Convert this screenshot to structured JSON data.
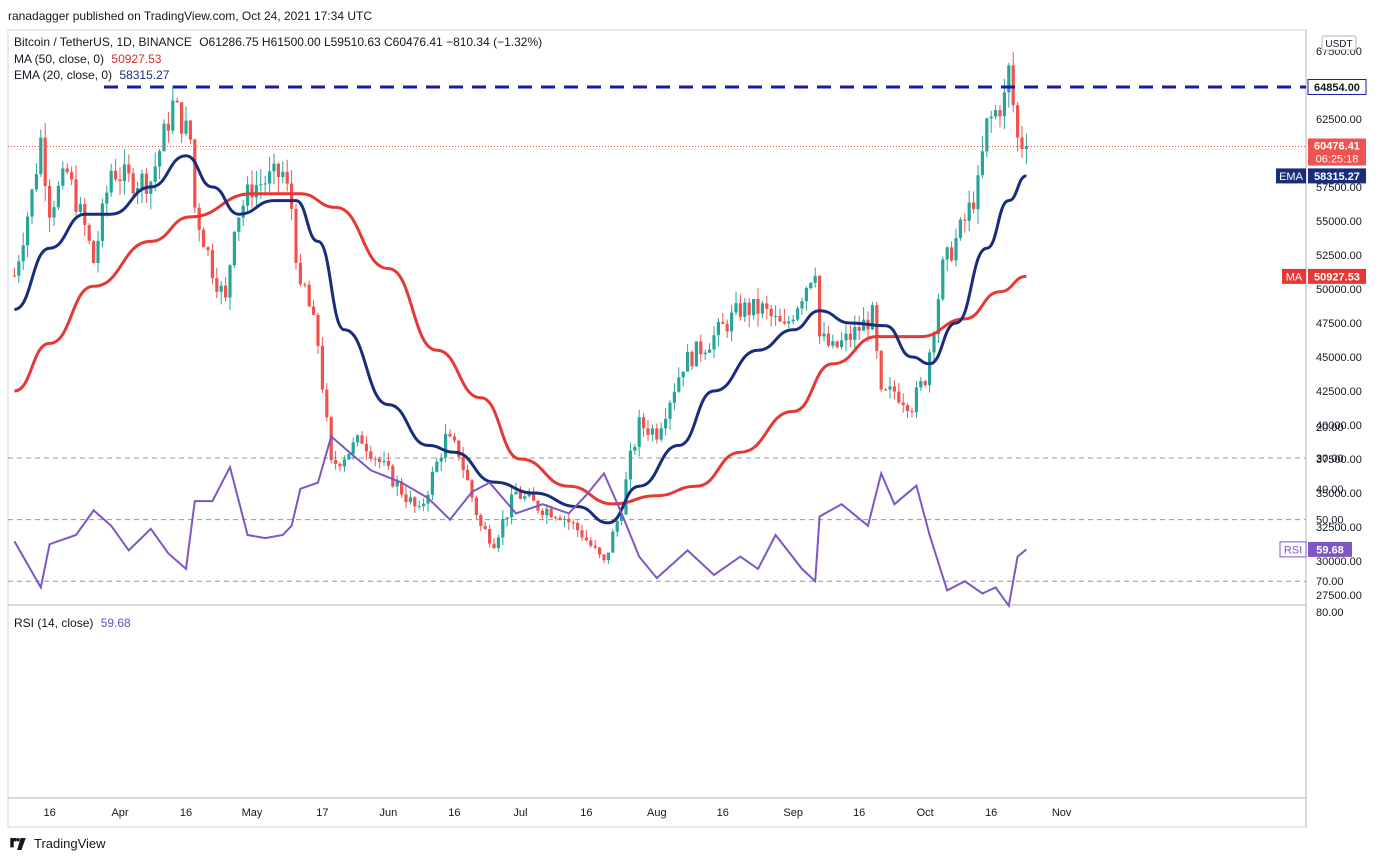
{
  "header": {
    "publisher": "ranadagger published on TradingView.com, Oct 24, 2021 17:34 UTC"
  },
  "legend": {
    "symbol": "Bitcoin / TetherUS, 1D, BINANCE",
    "ohlc": "O61286.75  H61500.00  L59510.63  C60476.41  −810.34 (−1.32%)",
    "ma_label": "MA (50, close, 0)",
    "ma_value": "50927.53",
    "ema_label": "EMA (20, close, 0)",
    "ema_value": "58315.27",
    "rsi_label": "RSI (14, close)",
    "rsi_value": "59.68"
  },
  "price_axis": {
    "currency": "USDT",
    "ticks": [
      "67500.00",
      "62500.00",
      "60000.00",
      "57500.00",
      "55000.00",
      "52500.00",
      "50000.00",
      "47500.00",
      "45000.00",
      "42500.00",
      "40000.00",
      "37500.00",
      "35000.00",
      "32500.00",
      "30000.00",
      "27500.00"
    ],
    "resistance_label": "64854.00",
    "last_price_label": "60476.41",
    "countdown_label": "06:25:18",
    "ema_tag": "EMA",
    "ema_tag_value": "58315.27",
    "ma_tag": "MA",
    "ma_tag_value": "50927.53"
  },
  "rsi_axis": {
    "ticks": [
      "80.00",
      "70.00",
      "50.00",
      "40.00",
      "30.00",
      "20.00"
    ],
    "rsi_tag": "RSI",
    "rsi_tag_value": "59.68"
  },
  "time_axis": {
    "labels": [
      "16",
      "Apr",
      "16",
      "May",
      "17",
      "Jun",
      "16",
      "Jul",
      "16",
      "Aug",
      "16",
      "Sep",
      "16",
      "Oct",
      "16",
      "Nov"
    ]
  },
  "footer": {
    "brand": "TradingView"
  },
  "colors": {
    "up": "#26a69a",
    "down": "#ef5350",
    "ema": "#1a2d7a",
    "ma": "#e53935",
    "rsi": "#7e57c2",
    "resistance": "#1a1aa8",
    "rsi_band": "#ede7f6"
  },
  "chart_data": {
    "type": "candlestick",
    "symbol": "Bitcoin / TetherUS",
    "interval": "1D",
    "ylim": [
      27000,
      68500
    ],
    "resistance": 64854.0,
    "last_close": 60476.41,
    "close_path": [
      [
        "2021-03-08",
        51000
      ],
      [
        "2021-03-12",
        57000
      ],
      [
        "2021-03-14",
        61000
      ],
      [
        "2021-03-16",
        56000
      ],
      [
        "2021-03-20",
        58500
      ],
      [
        "2021-03-24",
        54500
      ],
      [
        "2021-03-26",
        52000
      ],
      [
        "2021-03-30",
        58800
      ],
      [
        "2021-04-03",
        58000
      ],
      [
        "2021-04-08",
        58000
      ],
      [
        "2021-04-13",
        63500
      ],
      [
        "2021-04-14",
        63000
      ],
      [
        "2021-04-17",
        61000
      ],
      [
        "2021-04-18",
        56000
      ],
      [
        "2021-04-22",
        51500
      ],
      [
        "2021-04-25",
        49000
      ],
      [
        "2021-04-27",
        55000
      ],
      [
        "2021-05-01",
        57500
      ],
      [
        "2021-05-08",
        58500
      ],
      [
        "2021-05-10",
        56000
      ],
      [
        "2021-05-12",
        49500
      ],
      [
        "2021-05-13",
        50000
      ],
      [
        "2021-05-16",
        46000
      ],
      [
        "2021-05-19",
        37000
      ],
      [
        "2021-05-21",
        37500
      ],
      [
        "2021-05-26",
        39000
      ],
      [
        "2021-06-02",
        36000
      ],
      [
        "2021-06-08",
        33500
      ],
      [
        "2021-06-14",
        39000
      ],
      [
        "2021-06-17",
        38000
      ],
      [
        "2021-06-22",
        32500
      ],
      [
        "2021-06-25",
        31500
      ],
      [
        "2021-06-30",
        35000
      ],
      [
        "2021-07-05",
        34000
      ],
      [
        "2021-07-10",
        33500
      ],
      [
        "2021-07-15",
        32000
      ],
      [
        "2021-07-20",
        29800
      ],
      [
        "2021-07-24",
        34000
      ],
      [
        "2021-07-26",
        37500
      ],
      [
        "2021-07-28",
        40000
      ],
      [
        "2021-08-01",
        39500
      ],
      [
        "2021-08-07",
        44500
      ],
      [
        "2021-08-14",
        46500
      ],
      [
        "2021-08-20",
        48500
      ],
      [
        "2021-08-25",
        48500
      ],
      [
        "2021-08-30",
        47000
      ],
      [
        "2021-09-06",
        51700
      ],
      [
        "2021-09-07",
        46500
      ],
      [
        "2021-09-10",
        45500
      ],
      [
        "2021-09-14",
        46500
      ],
      [
        "2021-09-19",
        48000
      ],
      [
        "2021-09-21",
        42000
      ],
      [
        "2021-09-24",
        42500
      ],
      [
        "2021-09-28",
        41500
      ],
      [
        "2021-10-01",
        43500
      ],
      [
        "2021-10-05",
        51500
      ],
      [
        "2021-10-10",
        55000
      ],
      [
        "2021-10-13",
        57500
      ],
      [
        "2021-10-15",
        62000
      ],
      [
        "2021-10-19",
        64000
      ],
      [
        "2021-10-20",
        66000
      ],
      [
        "2021-10-22",
        61000
      ],
      [
        "2021-10-24",
        60476.41
      ]
    ],
    "ema20_path": [
      [
        "2021-03-08",
        48500
      ],
      [
        "2021-03-16",
        53000
      ],
      [
        "2021-03-24",
        55500
      ],
      [
        "2021-03-30",
        55500
      ],
      [
        "2021-04-08",
        57500
      ],
      [
        "2021-04-16",
        59800
      ],
      [
        "2021-04-22",
        57500
      ],
      [
        "2021-04-28",
        55500
      ],
      [
        "2021-05-06",
        56500
      ],
      [
        "2021-05-11",
        56500
      ],
      [
        "2021-05-16",
        53500
      ],
      [
        "2021-05-22",
        47000
      ],
      [
        "2021-06-01",
        41500
      ],
      [
        "2021-06-10",
        38500
      ],
      [
        "2021-06-16",
        38000
      ],
      [
        "2021-06-25",
        35800
      ],
      [
        "2021-07-04",
        35000
      ],
      [
        "2021-07-14",
        34000
      ],
      [
        "2021-07-21",
        32800
      ],
      [
        "2021-07-28",
        35500
      ],
      [
        "2021-08-06",
        38500
      ],
      [
        "2021-08-14",
        42500
      ],
      [
        "2021-08-24",
        45500
      ],
      [
        "2021-09-01",
        47000
      ],
      [
        "2021-09-07",
        48400
      ],
      [
        "2021-09-14",
        47500
      ],
      [
        "2021-09-22",
        47300
      ],
      [
        "2021-09-28",
        45000
      ],
      [
        "2021-10-02",
        44500
      ],
      [
        "2021-10-08",
        47500
      ],
      [
        "2021-10-15",
        53000
      ],
      [
        "2021-10-20",
        56500
      ],
      [
        "2021-10-24",
        58315.27
      ]
    ],
    "ma50_path": [
      [
        "2021-03-08",
        42500
      ],
      [
        "2021-03-16",
        46000
      ],
      [
        "2021-03-26",
        50200
      ],
      [
        "2021-04-08",
        53500
      ],
      [
        "2021-04-17",
        55300
      ],
      [
        "2021-05-01",
        57000
      ],
      [
        "2021-05-12",
        57000
      ],
      [
        "2021-05-20",
        56000
      ],
      [
        "2021-06-01",
        51500
      ],
      [
        "2021-06-12",
        45500
      ],
      [
        "2021-06-22",
        42000
      ],
      [
        "2021-07-01",
        37500
      ],
      [
        "2021-07-12",
        35500
      ],
      [
        "2021-07-22",
        34200
      ],
      [
        "2021-08-01",
        34800
      ],
      [
        "2021-08-10",
        35500
      ],
      [
        "2021-08-20",
        38000
      ],
      [
        "2021-09-01",
        41000
      ],
      [
        "2021-09-10",
        44500
      ],
      [
        "2021-09-20",
        46500
      ],
      [
        "2021-09-30",
        46500
      ],
      [
        "2021-10-10",
        47800
      ],
      [
        "2021-10-18",
        49800
      ],
      [
        "2021-10-24",
        50927.53
      ]
    ],
    "rsi": {
      "levels": [
        70,
        50,
        30
      ],
      "ylim": [
        20,
        80
      ],
      "path": [
        [
          "2021-03-08",
          57
        ],
        [
          "2021-03-14",
          72
        ],
        [
          "2021-03-16",
          58
        ],
        [
          "2021-03-22",
          55
        ],
        [
          "2021-03-26",
          47
        ],
        [
          "2021-03-30",
          52
        ],
        [
          "2021-04-03",
          60
        ],
        [
          "2021-04-08",
          53
        ],
        [
          "2021-04-12",
          61
        ],
        [
          "2021-04-16",
          66
        ],
        [
          "2021-04-18",
          44
        ],
        [
          "2021-04-22",
          44
        ],
        [
          "2021-04-26",
          33
        ],
        [
          "2021-04-30",
          55
        ],
        [
          "2021-05-04",
          56
        ],
        [
          "2021-05-08",
          55
        ],
        [
          "2021-05-10",
          52
        ],
        [
          "2021-05-12",
          40
        ],
        [
          "2021-05-16",
          38
        ],
        [
          "2021-05-19",
          23
        ],
        [
          "2021-05-23",
          28
        ],
        [
          "2021-05-28",
          34
        ],
        [
          "2021-06-04",
          38
        ],
        [
          "2021-06-10",
          43
        ],
        [
          "2021-06-15",
          50
        ],
        [
          "2021-06-20",
          41
        ],
        [
          "2021-06-24",
          38
        ],
        [
          "2021-06-30",
          48
        ],
        [
          "2021-07-06",
          45
        ],
        [
          "2021-07-12",
          48
        ],
        [
          "2021-07-16",
          42
        ],
        [
          "2021-07-20",
          35
        ],
        [
          "2021-07-24",
          48
        ],
        [
          "2021-07-28",
          62
        ],
        [
          "2021-08-01",
          69
        ],
        [
          "2021-08-08",
          60
        ],
        [
          "2021-08-14",
          68
        ],
        [
          "2021-08-20",
          62
        ],
        [
          "2021-08-24",
          66
        ],
        [
          "2021-08-28",
          55
        ],
        [
          "2021-09-03",
          66
        ],
        [
          "2021-09-06",
          70
        ],
        [
          "2021-09-07",
          49
        ],
        [
          "2021-09-12",
          45
        ],
        [
          "2021-09-18",
          52
        ],
        [
          "2021-09-21",
          35
        ],
        [
          "2021-09-24",
          45
        ],
        [
          "2021-09-29",
          39
        ],
        [
          "2021-10-02",
          55
        ],
        [
          "2021-10-06",
          73
        ],
        [
          "2021-10-10",
          70
        ],
        [
          "2021-10-14",
          74
        ],
        [
          "2021-10-17",
          72
        ],
        [
          "2021-10-20",
          78
        ],
        [
          "2021-10-22",
          62
        ],
        [
          "2021-10-24",
          59.68
        ]
      ]
    }
  }
}
